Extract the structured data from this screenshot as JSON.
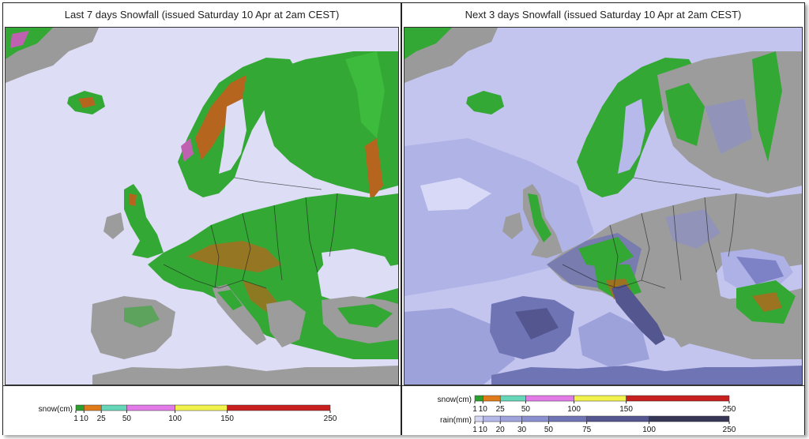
{
  "panels": {
    "left": {
      "title": "Last 7 days Snowfall (issued Saturday 10 Apr at 2am CEST)",
      "legend": {
        "snow_label": "snow(cm)",
        "snow_ticks": [
          "1",
          "10",
          "25",
          "50",
          "100",
          "150",
          "250"
        ],
        "snow_colors": [
          "#2ca02c",
          "#e07b1a",
          "#66d6b9",
          "#e27ae8",
          "#f2f24c",
          "#c81f1f"
        ]
      }
    },
    "right": {
      "title": "Next 3 days Snowfall (issued Saturday 10 Apr at 2am CEST)",
      "legend": {
        "snow_label": "snow(cm)",
        "snow_ticks": [
          "1",
          "10",
          "25",
          "50",
          "100",
          "150",
          "250"
        ],
        "snow_colors": [
          "#2ca02c",
          "#e07b1a",
          "#66d6b9",
          "#e27ae8",
          "#f2f24c",
          "#c81f1f"
        ],
        "rain_label": "rain(mm)",
        "rain_ticks": [
          "1",
          "10",
          "20",
          "30",
          "50",
          "75",
          "100",
          "250"
        ],
        "rain_colors": [
          "#d4d6f3",
          "#b4b8e8",
          "#9ea3dc",
          "#8a90cf",
          "#6f74b4",
          "#53568f",
          "#363757"
        ]
      }
    }
  },
  "colors": {
    "sea": "#ddddf6",
    "land": "#9c9c9c",
    "snow_green": "#34a834",
    "snow_orange": "#b5651d",
    "rain_light": "#b7b9ea",
    "rain_dark": "#5b5f9e"
  }
}
